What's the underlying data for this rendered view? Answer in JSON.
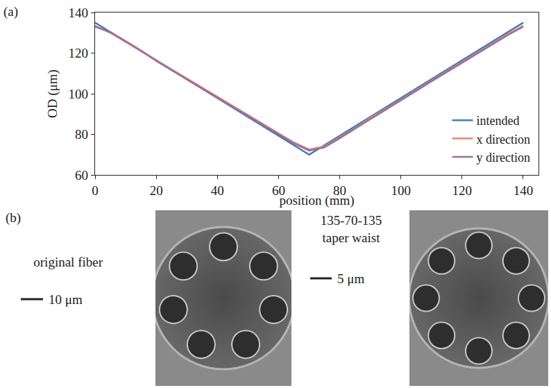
{
  "chart_data": {
    "type": "line",
    "panel_label": "(a)",
    "x_label": "position (mm)",
    "y_label": "OD (μm)",
    "xlim": [
      0,
      145
    ],
    "ylim": [
      60,
      140
    ],
    "xticks": [
      0,
      20,
      40,
      60,
      80,
      100,
      120,
      140
    ],
    "yticks": [
      60,
      80,
      100,
      120,
      140
    ],
    "grid": false,
    "legend": "lower right",
    "series": [
      {
        "name": "intended",
        "color": "#3b7fb3",
        "x": [
          0,
          70,
          140
        ],
        "values": [
          135,
          70,
          135
        ]
      },
      {
        "name": "x direction",
        "color": "#e8836f",
        "x": [
          0,
          5,
          10,
          15,
          20,
          25,
          30,
          35,
          40,
          45,
          50,
          55,
          60,
          65,
          70,
          75,
          80,
          85,
          90,
          95,
          100,
          105,
          110,
          115,
          120,
          125,
          130,
          135,
          140
        ],
        "values": [
          133.5,
          130.0,
          125.5,
          121.0,
          116.6,
          112.0,
          107.5,
          102.8,
          98.4,
          94.0,
          89.5,
          85.0,
          80.5,
          76.0,
          72.5,
          74.0,
          78.5,
          83.0,
          88.0,
          92.5,
          97.0,
          101.8,
          106.5,
          111.0,
          115.6,
          120.2,
          124.8,
          129.3,
          133.5
        ]
      },
      {
        "name": "y direction",
        "color": "#9a6e9f",
        "x": [
          0,
          5,
          10,
          15,
          20,
          25,
          30,
          35,
          40,
          45,
          50,
          55,
          60,
          65,
          70,
          75,
          80,
          85,
          90,
          95,
          100,
          105,
          110,
          115,
          120,
          125,
          130,
          135,
          140
        ],
        "values": [
          133.0,
          130.3,
          125.9,
          121.3,
          116.2,
          111.6,
          107.2,
          102.4,
          98.0,
          93.6,
          89.1,
          84.6,
          80.1,
          75.5,
          72.0,
          73.6,
          78.1,
          82.7,
          87.6,
          92.1,
          96.6,
          101.4,
          106.1,
          110.6,
          115.2,
          119.8,
          124.4,
          128.9,
          133.0
        ]
      }
    ]
  },
  "panel_b": {
    "label": "(b)",
    "images": [
      {
        "caption": [
          "original fiber"
        ],
        "scale_bar": "10 μm"
      },
      {
        "caption": [
          "135-70-135",
          "taper waist"
        ],
        "scale_bar": "5 μm"
      }
    ]
  }
}
